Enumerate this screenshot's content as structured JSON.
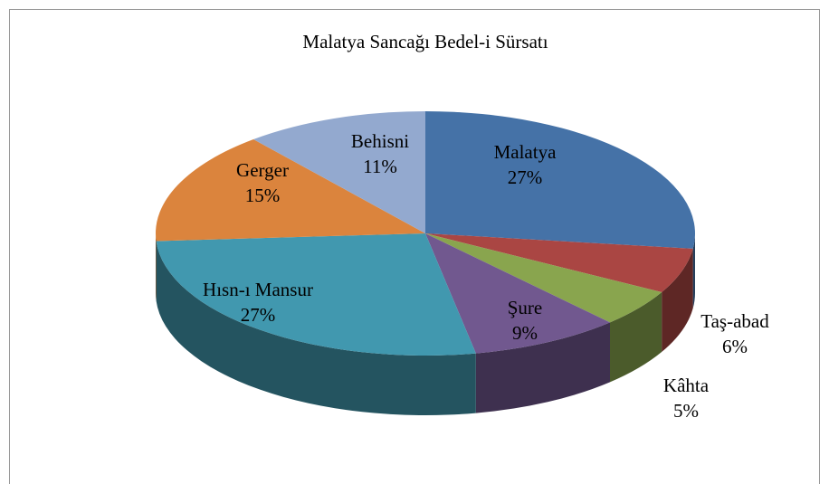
{
  "chart_data": {
    "type": "pie",
    "title": "Malatya Sancağı Bedel-i Sürsatı",
    "categories": [
      "Malatya",
      "Taş-abad",
      "Kâhta",
      "Şure",
      "Hısn-ı Mansur",
      "Gerger",
      "Behisni"
    ],
    "values": [
      27,
      6,
      5,
      9,
      27,
      15,
      11
    ],
    "value_labels": [
      "27%",
      "6%",
      "5%",
      "9%",
      "27%",
      "15%",
      "11%"
    ],
    "colors": [
      "#4572a7",
      "#aa4643",
      "#89a54e",
      "#71588f",
      "#4198af",
      "#db843d",
      "#93a9cf"
    ]
  }
}
